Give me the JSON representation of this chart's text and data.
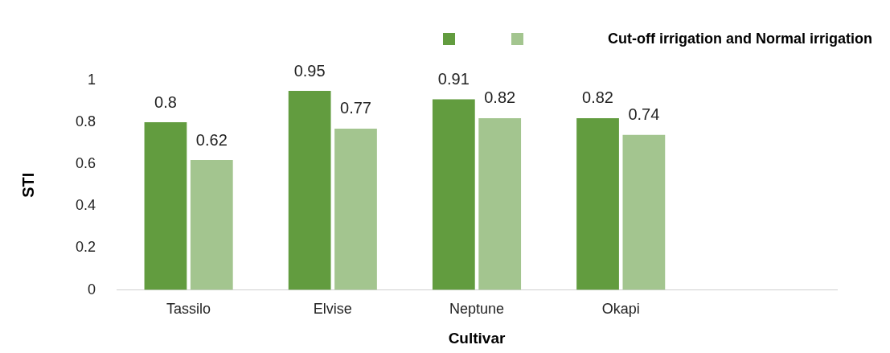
{
  "chart_data": {
    "type": "bar",
    "legend_title": "Cut-off irrigation and Normal irrigation",
    "xlabel": "Cultivar",
    "ylabel": "STI",
    "categories": [
      "Tassilo",
      "Elvise",
      "Neptune",
      "Okapi",
      null
    ],
    "series": [
      {
        "color": "#629c3f",
        "values": [
          0.8,
          0.95,
          0.91,
          0.82,
          null
        ]
      },
      {
        "color": "#a3c58f",
        "values": [
          0.62,
          0.77,
          0.82,
          0.74,
          null
        ]
      }
    ],
    "ylim": [
      0,
      1
    ],
    "yticks": [
      0,
      0.2,
      0.4,
      0.6,
      0.8,
      1
    ],
    "grid": false,
    "data_labels": true
  }
}
